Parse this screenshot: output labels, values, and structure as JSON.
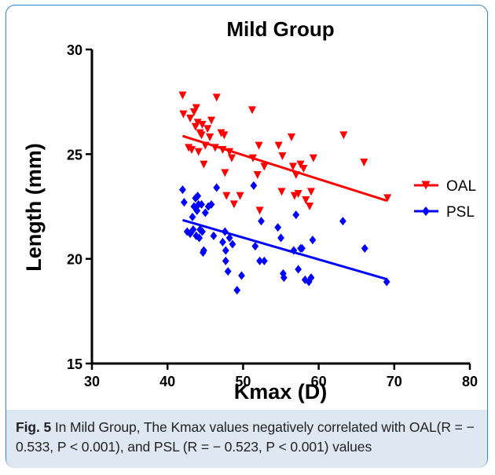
{
  "chart_data": {
    "type": "scatter",
    "title": "Mild Group",
    "xlabel": "Kmax (D)",
    "ylabel": "Length (mm)",
    "xlim": [
      30,
      80
    ],
    "ylim": [
      15,
      30
    ],
    "xticks": [
      "30",
      "40",
      "50",
      "60",
      "70",
      "80"
    ],
    "yticks": [
      "15",
      "20",
      "25",
      "30"
    ],
    "grid": false,
    "legend_position": "right",
    "series": [
      {
        "name": "OAL",
        "color": "#ff0000",
        "marker": "triangle-down",
        "points": [
          [
            42.0,
            27.8
          ],
          [
            42.1,
            26.9
          ],
          [
            42.8,
            25.3
          ],
          [
            43.0,
            26.7
          ],
          [
            43.2,
            25.2
          ],
          [
            43.5,
            27.0
          ],
          [
            43.7,
            26.3
          ],
          [
            43.8,
            27.2
          ],
          [
            44.0,
            26.5
          ],
          [
            44.1,
            25.1
          ],
          [
            44.3,
            26.0
          ],
          [
            44.5,
            25.9
          ],
          [
            44.6,
            26.4
          ],
          [
            44.8,
            24.5
          ],
          [
            45.0,
            25.4
          ],
          [
            45.3,
            26.2
          ],
          [
            45.6,
            25.8
          ],
          [
            45.8,
            26.6
          ],
          [
            46.3,
            25.3
          ],
          [
            46.5,
            27.7
          ],
          [
            47.1,
            26.0
          ],
          [
            47.3,
            25.2
          ],
          [
            47.5,
            25.9
          ],
          [
            47.6,
            24.1
          ],
          [
            47.8,
            23.0
          ],
          [
            48.2,
            25.1
          ],
          [
            48.5,
            24.8
          ],
          [
            48.8,
            22.6
          ],
          [
            49.6,
            23.0
          ],
          [
            51.2,
            27.1
          ],
          [
            51.3,
            24.8
          ],
          [
            51.9,
            24.0
          ],
          [
            52.1,
            25.4
          ],
          [
            52.2,
            22.3
          ],
          [
            52.8,
            24.4
          ],
          [
            54.7,
            25.4
          ],
          [
            55.1,
            23.2
          ],
          [
            55.2,
            24.9
          ],
          [
            56.4,
            25.8
          ],
          [
            56.6,
            24.4
          ],
          [
            56.8,
            23.0
          ],
          [
            57.0,
            24.0
          ],
          [
            57.3,
            23.1
          ],
          [
            57.6,
            24.5
          ],
          [
            58.0,
            24.3
          ],
          [
            58.3,
            22.8
          ],
          [
            58.8,
            22.5
          ],
          [
            59.0,
            23.2
          ],
          [
            59.3,
            24.8
          ],
          [
            63.3,
            25.9
          ],
          [
            66.0,
            24.6
          ],
          [
            69.1,
            22.9
          ]
        ],
        "fit": [
          [
            42,
            25.87
          ],
          [
            69,
            22.78
          ]
        ]
      },
      {
        "name": "PSL",
        "color": "#0000ff",
        "marker": "diamond",
        "points": [
          [
            42.0,
            23.3
          ],
          [
            42.2,
            22.7
          ],
          [
            42.6,
            21.3
          ],
          [
            43.0,
            21.2
          ],
          [
            43.3,
            22.0
          ],
          [
            43.4,
            21.4
          ],
          [
            43.5,
            22.5
          ],
          [
            43.7,
            22.9
          ],
          [
            43.8,
            21.1
          ],
          [
            43.9,
            22.3
          ],
          [
            44.0,
            23.0
          ],
          [
            44.1,
            22.6
          ],
          [
            44.2,
            21.0
          ],
          [
            44.3,
            21.4
          ],
          [
            44.5,
            22.6
          ],
          [
            44.6,
            21.3
          ],
          [
            44.7,
            20.3
          ],
          [
            44.8,
            20.4
          ],
          [
            45.0,
            22.2
          ],
          [
            45.4,
            22.5
          ],
          [
            45.8,
            22.6
          ],
          [
            46.1,
            21.1
          ],
          [
            46.5,
            23.4
          ],
          [
            47.3,
            20.8
          ],
          [
            47.6,
            21.3
          ],
          [
            47.7,
            20.4
          ],
          [
            47.7,
            19.9
          ],
          [
            48.0,
            19.4
          ],
          [
            48.2,
            21.0
          ],
          [
            48.6,
            20.7
          ],
          [
            49.2,
            18.5
          ],
          [
            49.8,
            19.2
          ],
          [
            51.4,
            23.5
          ],
          [
            51.6,
            20.6
          ],
          [
            52.2,
            19.9
          ],
          [
            52.4,
            21.8
          ],
          [
            52.8,
            19.9
          ],
          [
            54.6,
            21.5
          ],
          [
            55.0,
            21.0
          ],
          [
            55.3,
            19.3
          ],
          [
            55.4,
            19.1
          ],
          [
            56.7,
            20.4
          ],
          [
            57.0,
            22.1
          ],
          [
            57.3,
            19.5
          ],
          [
            57.6,
            20.5
          ],
          [
            57.8,
            20.5
          ],
          [
            58.2,
            19.0
          ],
          [
            58.7,
            18.9
          ],
          [
            59.0,
            19.1
          ],
          [
            59.2,
            20.9
          ],
          [
            63.2,
            21.8
          ],
          [
            66.1,
            20.5
          ],
          [
            69.0,
            18.9
          ]
        ],
        "fit": [
          [
            42,
            21.85
          ],
          [
            69,
            19.03
          ]
        ]
      }
    ]
  },
  "caption": {
    "label": "Fig. 5",
    "text": "In Mild Group, The Kmax values negatively correlated with OAL(R = − 0.533, P < 0.001), and PSL (R = − 0.523, P < 0.001) values"
  }
}
